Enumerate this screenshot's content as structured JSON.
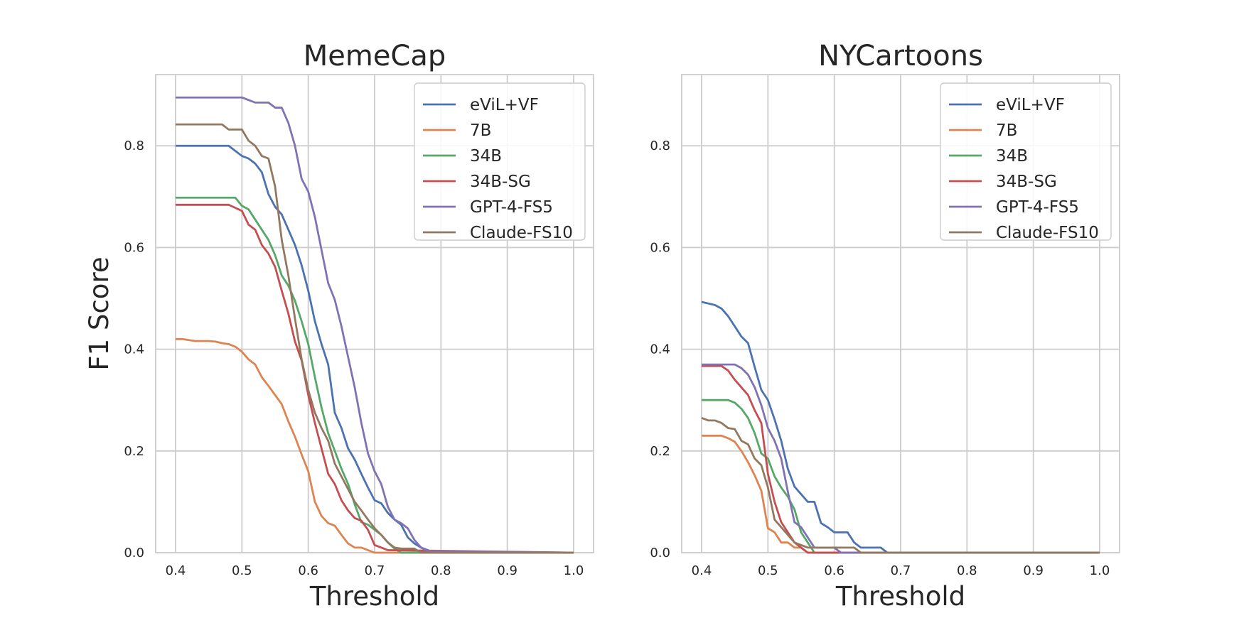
{
  "chart_data": [
    {
      "type": "line",
      "title": "MemeCap",
      "xlabel": "Threshold",
      "ylabel": "F1 Score",
      "xlim": [
        0.37,
        1.03
      ],
      "ylim": [
        0.0,
        0.94
      ],
      "xticks": [
        0.4,
        0.5,
        0.6,
        0.7,
        0.8,
        0.9,
        1.0
      ],
      "xtick_labels": [
        "0.4",
        "0.5",
        "0.6",
        "0.7",
        "0.8",
        "0.9",
        "1.0"
      ],
      "yticks": [
        0.0,
        0.2,
        0.4,
        0.6,
        0.8
      ],
      "ytick_labels": [
        "0.0",
        "0.2",
        "0.4",
        "0.6",
        "0.8"
      ],
      "grid": true,
      "legend_position": "top-right",
      "series": [
        {
          "name": "eViL+VF",
          "color": "#4c72b0",
          "x": [
            0.4,
            0.48,
            0.5,
            0.51,
            0.52,
            0.53,
            0.54,
            0.55,
            0.56,
            0.57,
            0.58,
            0.59,
            0.6,
            0.61,
            0.62,
            0.63,
            0.64,
            0.65,
            0.66,
            0.67,
            0.68,
            0.69,
            0.7,
            0.71,
            0.72,
            0.73,
            0.74,
            0.75,
            0.76,
            0.77,
            0.78,
            0.79,
            1.0
          ],
          "y": [
            0.8,
            0.8,
            0.78,
            0.775,
            0.765,
            0.748,
            0.705,
            0.68,
            0.665,
            0.635,
            0.605,
            0.565,
            0.515,
            0.455,
            0.41,
            0.37,
            0.275,
            0.245,
            0.205,
            0.183,
            0.155,
            0.128,
            0.103,
            0.097,
            0.078,
            0.065,
            0.055,
            0.03,
            0.018,
            0.01,
            0.005,
            0.0,
            0.0
          ]
        },
        {
          "name": "7B",
          "color": "#dd8452",
          "x": [
            0.4,
            0.41,
            0.42,
            0.43,
            0.44,
            0.45,
            0.46,
            0.47,
            0.48,
            0.49,
            0.5,
            0.51,
            0.52,
            0.53,
            0.54,
            0.55,
            0.56,
            0.57,
            0.58,
            0.59,
            0.6,
            0.61,
            0.62,
            0.63,
            0.64,
            0.65,
            0.66,
            0.67,
            0.68,
            0.69,
            0.7,
            1.0
          ],
          "y": [
            0.42,
            0.42,
            0.418,
            0.416,
            0.416,
            0.416,
            0.415,
            0.412,
            0.41,
            0.405,
            0.395,
            0.38,
            0.37,
            0.345,
            0.328,
            0.31,
            0.292,
            0.258,
            0.228,
            0.193,
            0.16,
            0.1,
            0.072,
            0.058,
            0.053,
            0.035,
            0.018,
            0.01,
            0.01,
            0.005,
            0.0,
            0.0
          ]
        },
        {
          "name": "34B",
          "color": "#55a868",
          "x": [
            0.4,
            0.49,
            0.5,
            0.51,
            0.52,
            0.53,
            0.54,
            0.55,
            0.56,
            0.57,
            0.58,
            0.59,
            0.6,
            0.61,
            0.62,
            0.63,
            0.64,
            0.65,
            0.66,
            0.67,
            0.68,
            0.69,
            0.7,
            0.71,
            0.72,
            0.73,
            0.74,
            1.0
          ],
          "y": [
            0.698,
            0.698,
            0.682,
            0.675,
            0.655,
            0.635,
            0.615,
            0.585,
            0.545,
            0.525,
            0.495,
            0.455,
            0.41,
            0.345,
            0.285,
            0.235,
            0.2,
            0.165,
            0.135,
            0.095,
            0.06,
            0.055,
            0.045,
            0.035,
            0.02,
            0.008,
            0.0,
            0.0
          ]
        },
        {
          "name": "34B-SG",
          "color": "#c44e52",
          "x": [
            0.4,
            0.48,
            0.5,
            0.51,
            0.52,
            0.53,
            0.54,
            0.55,
            0.56,
            0.57,
            0.58,
            0.59,
            0.6,
            0.61,
            0.62,
            0.63,
            0.64,
            0.65,
            0.66,
            0.67,
            0.68,
            0.69,
            0.7,
            0.71,
            0.72,
            1.0
          ],
          "y": [
            0.684,
            0.684,
            0.672,
            0.645,
            0.635,
            0.605,
            0.588,
            0.562,
            0.515,
            0.47,
            0.415,
            0.378,
            0.31,
            0.255,
            0.205,
            0.155,
            0.135,
            0.103,
            0.083,
            0.068,
            0.063,
            0.045,
            0.015,
            0.01,
            0.005,
            0.0
          ]
        },
        {
          "name": "GPT-4-FS5",
          "color": "#8172b3",
          "x": [
            0.4,
            0.5,
            0.51,
            0.52,
            0.53,
            0.54,
            0.55,
            0.56,
            0.57,
            0.58,
            0.59,
            0.6,
            0.61,
            0.62,
            0.63,
            0.64,
            0.65,
            0.66,
            0.67,
            0.68,
            0.69,
            0.7,
            0.71,
            0.72,
            0.73,
            0.74,
            0.75,
            0.76,
            0.77,
            0.78,
            1.0
          ],
          "y": [
            0.895,
            0.895,
            0.89,
            0.885,
            0.885,
            0.885,
            0.875,
            0.875,
            0.845,
            0.8,
            0.735,
            0.71,
            0.66,
            0.595,
            0.53,
            0.497,
            0.445,
            0.385,
            0.325,
            0.255,
            0.195,
            0.16,
            0.135,
            0.09,
            0.065,
            0.058,
            0.048,
            0.025,
            0.01,
            0.003,
            0.0
          ]
        },
        {
          "name": "Claude-FS10",
          "color": "#937860",
          "x": [
            0.4,
            0.47,
            0.48,
            0.49,
            0.5,
            0.51,
            0.52,
            0.53,
            0.54,
            0.55,
            0.56,
            0.57,
            0.58,
            0.59,
            0.6,
            0.61,
            0.62,
            0.63,
            0.64,
            0.65,
            0.66,
            0.67,
            0.68,
            0.69,
            0.7,
            0.71,
            0.72,
            0.73,
            0.74,
            0.75,
            0.76,
            0.77,
            1.0
          ],
          "y": [
            0.842,
            0.842,
            0.832,
            0.832,
            0.832,
            0.81,
            0.8,
            0.78,
            0.775,
            0.72,
            0.615,
            0.545,
            0.46,
            0.38,
            0.32,
            0.275,
            0.245,
            0.22,
            0.175,
            0.15,
            0.125,
            0.1,
            0.083,
            0.065,
            0.048,
            0.035,
            0.02,
            0.01,
            0.008,
            0.008,
            0.008,
            0.0,
            0.0
          ]
        }
      ]
    },
    {
      "type": "line",
      "title": "NYCartoons",
      "xlabel": "Threshold",
      "ylabel": "",
      "xlim": [
        0.37,
        1.03
      ],
      "ylim": [
        0.0,
        0.94
      ],
      "xticks": [
        0.4,
        0.5,
        0.6,
        0.7,
        0.8,
        0.9,
        1.0
      ],
      "xtick_labels": [
        "0.4",
        "0.5",
        "0.6",
        "0.7",
        "0.8",
        "0.9",
        "1.0"
      ],
      "yticks": [
        0.0,
        0.2,
        0.4,
        0.6,
        0.8
      ],
      "ytick_labels": [
        "0.0",
        "0.2",
        "0.4",
        "0.6",
        "0.8"
      ],
      "grid": true,
      "legend_position": "top-right",
      "series": [
        {
          "name": "eViL+VF",
          "color": "#4c72b0",
          "x": [
            0.4,
            0.41,
            0.42,
            0.43,
            0.44,
            0.45,
            0.46,
            0.47,
            0.48,
            0.49,
            0.5,
            0.51,
            0.52,
            0.53,
            0.54,
            0.55,
            0.56,
            0.57,
            0.58,
            0.59,
            0.6,
            0.61,
            0.62,
            0.63,
            0.64,
            0.65,
            0.66,
            0.67,
            0.68,
            1.0
          ],
          "y": [
            0.493,
            0.49,
            0.487,
            0.48,
            0.465,
            0.445,
            0.425,
            0.412,
            0.365,
            0.32,
            0.3,
            0.262,
            0.22,
            0.165,
            0.13,
            0.115,
            0.1,
            0.1,
            0.058,
            0.05,
            0.04,
            0.04,
            0.04,
            0.02,
            0.01,
            0.01,
            0.01,
            0.01,
            0.0,
            0.0
          ]
        },
        {
          "name": "7B",
          "color": "#dd8452",
          "x": [
            0.4,
            0.43,
            0.44,
            0.45,
            0.46,
            0.47,
            0.48,
            0.49,
            0.5,
            0.51,
            0.52,
            0.53,
            0.54,
            0.55,
            0.56,
            1.0
          ],
          "y": [
            0.23,
            0.23,
            0.225,
            0.218,
            0.2,
            0.178,
            0.152,
            0.122,
            0.048,
            0.04,
            0.02,
            0.02,
            0.01,
            0.01,
            0.0,
            0.0
          ]
        },
        {
          "name": "34B",
          "color": "#55a868",
          "x": [
            0.4,
            0.44,
            0.45,
            0.46,
            0.47,
            0.48,
            0.49,
            0.5,
            0.51,
            0.52,
            0.53,
            0.54,
            0.55,
            0.56,
            0.57,
            1.0
          ],
          "y": [
            0.3,
            0.3,
            0.295,
            0.283,
            0.265,
            0.235,
            0.195,
            0.185,
            0.15,
            0.128,
            0.11,
            0.085,
            0.04,
            0.02,
            0.0,
            0.0
          ]
        },
        {
          "name": "34B-SG",
          "color": "#c44e52",
          "x": [
            0.4,
            0.43,
            0.44,
            0.45,
            0.46,
            0.47,
            0.48,
            0.49,
            0.5,
            0.51,
            0.52,
            0.53,
            0.54,
            0.55,
            0.56,
            1.0
          ],
          "y": [
            0.367,
            0.367,
            0.358,
            0.34,
            0.325,
            0.31,
            0.28,
            0.255,
            0.155,
            0.1,
            0.06,
            0.04,
            0.02,
            0.01,
            0.0,
            0.0
          ]
        },
        {
          "name": "GPT-4-FS5",
          "color": "#8172b3",
          "x": [
            0.4,
            0.45,
            0.46,
            0.47,
            0.48,
            0.49,
            0.5,
            0.51,
            0.52,
            0.53,
            0.54,
            0.55,
            0.56,
            0.57,
            0.58,
            0.59,
            0.6,
            0.61,
            1.0
          ],
          "y": [
            0.37,
            0.37,
            0.363,
            0.35,
            0.325,
            0.29,
            0.245,
            0.22,
            0.185,
            0.12,
            0.06,
            0.05,
            0.03,
            0.01,
            0.01,
            0.01,
            0.01,
            0.0,
            0.0
          ]
        },
        {
          "name": "Claude-FS10",
          "color": "#937860",
          "x": [
            0.4,
            0.41,
            0.42,
            0.43,
            0.44,
            0.45,
            0.46,
            0.47,
            0.48,
            0.49,
            0.5,
            0.51,
            0.52,
            0.53,
            0.54,
            0.55,
            0.56,
            0.57,
            0.58,
            0.59,
            0.6,
            0.61,
            0.62,
            0.63,
            0.64,
            1.0
          ],
          "y": [
            0.265,
            0.26,
            0.26,
            0.255,
            0.245,
            0.243,
            0.22,
            0.213,
            0.185,
            0.172,
            0.128,
            0.065,
            0.05,
            0.035,
            0.02,
            0.015,
            0.01,
            0.01,
            0.01,
            0.01,
            0.01,
            0.01,
            0.01,
            0.01,
            0.0,
            0.0
          ]
        }
      ]
    }
  ]
}
